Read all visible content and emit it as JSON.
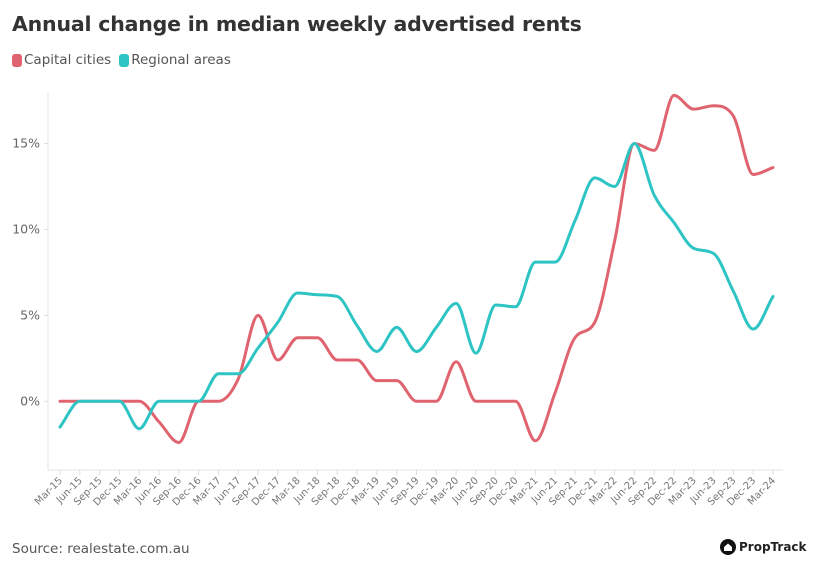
{
  "title": "Annual change in median weekly advertised rents",
  "source": "Source: realestate.com.au",
  "logo_text": "PropTrack",
  "chart_data": {
    "type": "line",
    "title": "Annual change in median weekly advertised rents",
    "xlabel": "",
    "ylabel": "",
    "ylim": [
      -4,
      18
    ],
    "yticks": [
      0,
      5,
      10,
      15
    ],
    "ytick_labels": [
      "0%",
      "5%",
      "10%",
      "15%"
    ],
    "grid": false,
    "legend_position": "top-left",
    "categories": [
      "Mar-15",
      "Jun-15",
      "Sep-15",
      "Dec-15",
      "Mar-16",
      "Jun-16",
      "Sep-16",
      "Dec-16",
      "Mar-17",
      "Jun-17",
      "Sep-17",
      "Dec-17",
      "Mar-18",
      "Jun-18",
      "Sep-18",
      "Dec-18",
      "Mar-19",
      "Jun-19",
      "Sep-19",
      "Dec-19",
      "Mar-20",
      "Jun-20",
      "Sep-20",
      "Dec-20",
      "Mar-21",
      "Jun-21",
      "Sep-21",
      "Dec-21",
      "Mar-22",
      "Jun-22",
      "Sep-22",
      "Dec-22",
      "Mar-23",
      "Jun-23",
      "Sep-23",
      "Dec-23",
      "Mar-24"
    ],
    "series": [
      {
        "name": "Capital cities",
        "color": "#e0646f",
        "values": [
          0,
          0,
          0,
          0,
          0,
          -1.2,
          -2.4,
          0,
          0,
          1.3,
          5.0,
          2.4,
          3.7,
          3.7,
          2.4,
          2.4,
          1.2,
          1.2,
          0,
          0,
          2.3,
          0,
          0,
          0,
          -2.3,
          0.5,
          3.7,
          4.6,
          9.3,
          15.0,
          14.6,
          17.8,
          17.0,
          17.2,
          16.6,
          13.2,
          13.6
        ]
      },
      {
        "name": "Regional areas",
        "color": "#2ec4c4",
        "values": [
          -1.5,
          0,
          0,
          0,
          -1.6,
          0,
          0,
          0,
          1.6,
          1.6,
          3.1,
          4.6,
          6.3,
          6.2,
          6.1,
          4.4,
          2.9,
          4.3,
          2.9,
          4.3,
          5.7,
          2.8,
          5.6,
          5.5,
          8.1,
          8.1,
          10.5,
          13.0,
          12.5,
          15.0,
          12.0,
          10.4,
          8.9,
          8.6,
          6.4,
          4.2,
          6.1
        ]
      }
    ]
  }
}
